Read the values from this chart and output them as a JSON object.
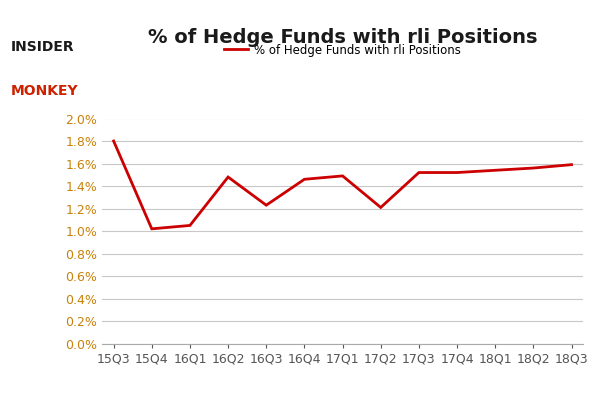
{
  "x_labels": [
    "15Q3",
    "15Q4",
    "16Q1",
    "16Q2",
    "16Q3",
    "16Q4",
    "17Q1",
    "17Q2",
    "17Q3",
    "17Q4",
    "18Q1",
    "18Q2",
    "18Q3"
  ],
  "y_values": [
    0.018,
    0.0102,
    0.0105,
    0.0148,
    0.0123,
    0.0146,
    0.0149,
    0.0121,
    0.0152,
    0.0152,
    0.0154,
    0.0156,
    0.0159
  ],
  "line_color": "#cc0000",
  "title": "% of Hedge Funds with rli Positions",
  "legend_label": "% of Hedge Funds with rli Positions",
  "ylim": [
    0.0,
    0.02
  ],
  "ytick_step": 0.002,
  "background_color": "#ffffff",
  "grid_color": "#c8c8c8",
  "title_fontsize": 14,
  "legend_fontsize": 8.5,
  "tick_fontsize": 9,
  "ytick_color": "#c8820a",
  "xtick_color": "#555555"
}
